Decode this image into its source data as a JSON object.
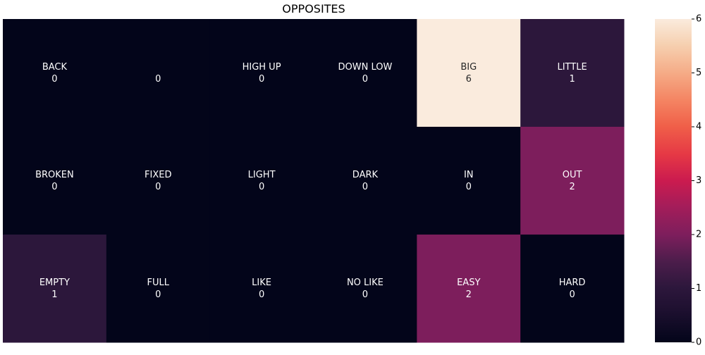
{
  "chart_data": {
    "type": "heatmap",
    "title": "OPPOSITES",
    "rows": 3,
    "cols": 6,
    "cells": [
      [
        {
          "label": "BACK",
          "value": 0
        },
        {
          "label": "",
          "value": 0
        },
        {
          "label": "HIGH UP",
          "value": 0
        },
        {
          "label": "DOWN LOW",
          "value": 0
        },
        {
          "label": "BIG",
          "value": 6
        },
        {
          "label": "LITTLE",
          "value": 1
        }
      ],
      [
        {
          "label": "BROKEN",
          "value": 0
        },
        {
          "label": "FIXED",
          "value": 0
        },
        {
          "label": "LIGHT",
          "value": 0
        },
        {
          "label": "DARK",
          "value": 0
        },
        {
          "label": "IN",
          "value": 0
        },
        {
          "label": "OUT",
          "value": 2
        }
      ],
      [
        {
          "label": "EMPTY",
          "value": 1
        },
        {
          "label": "FULL",
          "value": 0
        },
        {
          "label": "LIKE",
          "value": 0
        },
        {
          "label": "NO LIKE",
          "value": 0
        },
        {
          "label": "EASY",
          "value": 2
        },
        {
          "label": "HARD",
          "value": 0
        }
      ]
    ],
    "colorbar": {
      "min": 0,
      "max": 6,
      "ticks": [
        "0",
        "1",
        "2",
        "3",
        "4",
        "5",
        "6"
      ]
    },
    "colormap": "rocket"
  }
}
